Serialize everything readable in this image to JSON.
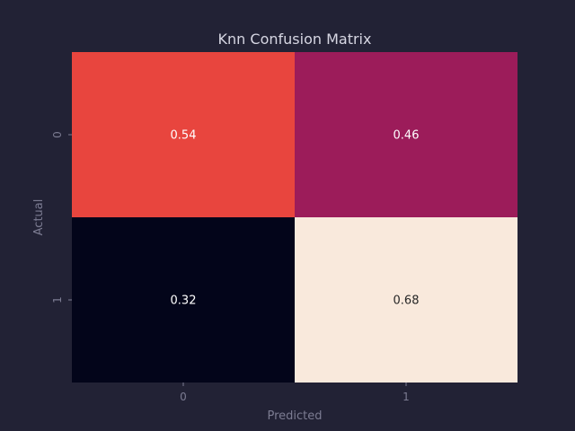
{
  "chart_data": {
    "type": "heatmap",
    "title": "Knn Confusion Matrix",
    "xlabel": "Predicted",
    "ylabel": "Actual",
    "x_categories": [
      "0",
      "1"
    ],
    "y_categories": [
      "0",
      "1"
    ],
    "values": [
      [
        0.54,
        0.46
      ],
      [
        0.32,
        0.68
      ]
    ],
    "value_labels": [
      [
        "0.54",
        "0.46"
      ],
      [
        "0.32",
        "0.68"
      ]
    ],
    "cell_colors": [
      [
        "#e8453e",
        "#9c1c5a"
      ],
      [
        "#03051a",
        "#f9e9dc"
      ]
    ],
    "text_colors": [
      [
        "#ffffff",
        "#ffffff"
      ],
      [
        "#ffffff",
        "#262626"
      ]
    ],
    "colorbar": false,
    "grid": false
  },
  "colors": {
    "background": "#222235",
    "title": "#d6d6e2",
    "axis_text": "#7c7c92"
  }
}
